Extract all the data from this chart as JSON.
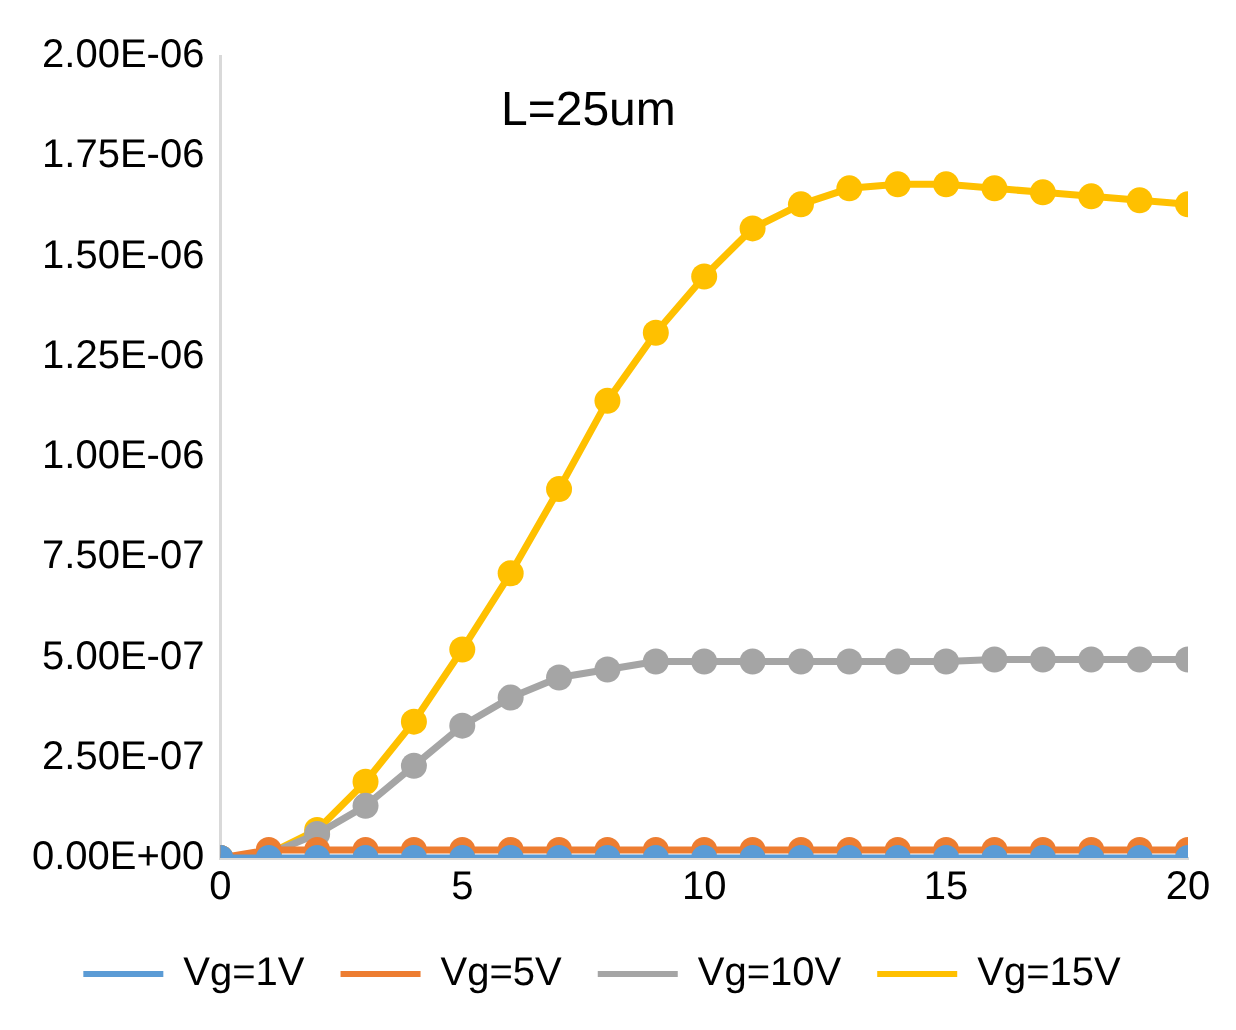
{
  "chart_data": {
    "type": "line",
    "x": [
      0,
      1,
      2,
      3,
      4,
      5,
      6,
      7,
      8,
      9,
      10,
      11,
      12,
      13,
      14,
      15,
      16,
      17,
      18,
      19,
      20
    ],
    "series": [
      {
        "name": "Vg=1V",
        "color": "#5b9bd5",
        "values": [
          0,
          0,
          0,
          0,
          0,
          0,
          0,
          0,
          0,
          0,
          0,
          0,
          0,
          0,
          0,
          0,
          0,
          0,
          0,
          0,
          0
        ]
      },
      {
        "name": "Vg=5V",
        "color": "#ed7d31",
        "values": [
          0,
          2e-08,
          2e-08,
          2e-08,
          2e-08,
          2e-08,
          2e-08,
          2e-08,
          2e-08,
          2e-08,
          2e-08,
          2e-08,
          2e-08,
          2e-08,
          2e-08,
          2e-08,
          2e-08,
          2e-08,
          2e-08,
          2e-08,
          2e-08
        ]
      },
      {
        "name": "Vg=10V",
        "color": "#a5a5a5",
        "values": [
          0,
          1e-08,
          6e-08,
          1.3e-07,
          2.3e-07,
          3.3e-07,
          4e-07,
          4.5e-07,
          4.7e-07,
          4.9e-07,
          4.9e-07,
          4.9e-07,
          4.9e-07,
          4.9e-07,
          4.9e-07,
          4.9e-07,
          4.95e-07,
          4.95e-07,
          4.95e-07,
          4.95e-07,
          4.95e-07
        ]
      },
      {
        "name": "Vg=15V",
        "color": "#ffc000",
        "values": [
          0,
          1e-08,
          7e-08,
          1.9e-07,
          3.4e-07,
          5.2e-07,
          7.1e-07,
          9.2e-07,
          1.14e-06,
          1.31e-06,
          1.45e-06,
          1.57e-06,
          1.63e-06,
          1.67e-06,
          1.68e-06,
          1.68e-06,
          1.67e-06,
          1.66e-06,
          1.65e-06,
          1.64e-06,
          1.63e-06
        ]
      }
    ],
    "xlim": [
      0,
      20
    ],
    "xticks": [
      0,
      5,
      10,
      15,
      20
    ],
    "ylim": [
      0,
      2e-06
    ],
    "yticks": [
      {
        "value": 0,
        "label": "0.00E+00"
      },
      {
        "value": 2.5e-07,
        "label": "2.50E-07"
      },
      {
        "value": 5e-07,
        "label": "5.00E-07"
      },
      {
        "value": 7.5e-07,
        "label": "7.50E-07"
      },
      {
        "value": 1e-06,
        "label": "1.00E-06"
      },
      {
        "value": 1.25e-06,
        "label": "1.25E-06"
      },
      {
        "value": 1.5e-06,
        "label": "1.50E-06"
      },
      {
        "value": 1.75e-06,
        "label": "1.75E-06"
      },
      {
        "value": 2e-06,
        "label": "2.00E-06"
      }
    ],
    "annotations": [
      "L=25um"
    ],
    "legend": "bottom",
    "marker": "circle",
    "line_style": "solid",
    "grid": false
  }
}
